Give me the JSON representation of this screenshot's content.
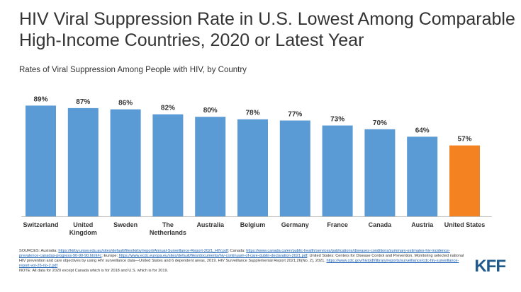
{
  "title": "HIV Viral Suppression Rate in U.S. Lowest Among Comparable High-Income Countries, 2020 or Latest Year",
  "subtitle": "Rates of Viral Suppression Among People with HIV, by Country",
  "chart_data": {
    "type": "bar",
    "title": "HIV Viral Suppression Rate in U.S. Lowest Among Comparable High-Income Countries, 2020 or Latest Year",
    "subtitle": "Rates of Viral Suppression Among People with HIV, by Country",
    "categories": [
      [
        "Switzerland"
      ],
      [
        "United",
        "Kingdom"
      ],
      [
        "Sweden"
      ],
      [
        "The",
        "Netherlands"
      ],
      [
        "Australia"
      ],
      [
        "Belgium"
      ],
      [
        "Germany"
      ],
      [
        "France"
      ],
      [
        "Canada"
      ],
      [
        "Austria"
      ],
      [
        "United States"
      ]
    ],
    "values": [
      89,
      87,
      86,
      82,
      80,
      78,
      77,
      73,
      70,
      64,
      57
    ],
    "labels": [
      "89%",
      "87%",
      "86%",
      "82%",
      "80%",
      "78%",
      "77%",
      "73%",
      "70%",
      "64%",
      "57%"
    ],
    "colors": [
      "#5b9bd5",
      "#5b9bd5",
      "#5b9bd5",
      "#5b9bd5",
      "#5b9bd5",
      "#5b9bd5",
      "#5b9bd5",
      "#5b9bd5",
      "#5b9bd5",
      "#5b9bd5",
      "#f58220"
    ],
    "xlabel": "",
    "ylabel": "",
    "ylim": [
      0,
      100
    ],
    "grid": false
  },
  "sources": [
    {
      "text": "SOURCES: Australia: "
    },
    {
      "text": "https://kirby.unsw.edu.au/sites/default/files/kirby/report/Annual-Surveillance-Report-2021_HIV.pdf",
      "link": true
    },
    {
      "text": "; Canada: "
    },
    {
      "text": "https://www.canada.ca/en/public-health/services/publications/diseases-conditions/summary-estimates-hiv-incidence-prevalence-canadas-progress-90-90-90.html#c",
      "link": true
    },
    {
      "text": "; Europe: "
    },
    {
      "text": "https://www.ecdc.europa.eu/sites/default/files/documents/hiv-continuum-of-care-dublin-declaration-2021.pdf",
      "link": true
    },
    {
      "text": "; United States: Centers for Disease Control and Prevention. Monitoring selected national HIV prevention and care objectives by using HIV surveillance data—United States and 6 dependent areas, 2019. HIV Surveillance Supplemental Report 2021;26(No. 2), 2021. "
    },
    {
      "text": "https://www.cdc.gov/hiv/pdf/library/reports/surveillance/cdc-hiv-surveillance-report-vol-26-no-2.pdf",
      "link": true
    }
  ],
  "note": "NOTE: All data for 2020 except Canada which is for 2018 and U.S. which is for 2019.",
  "logo_text": "KFF"
}
